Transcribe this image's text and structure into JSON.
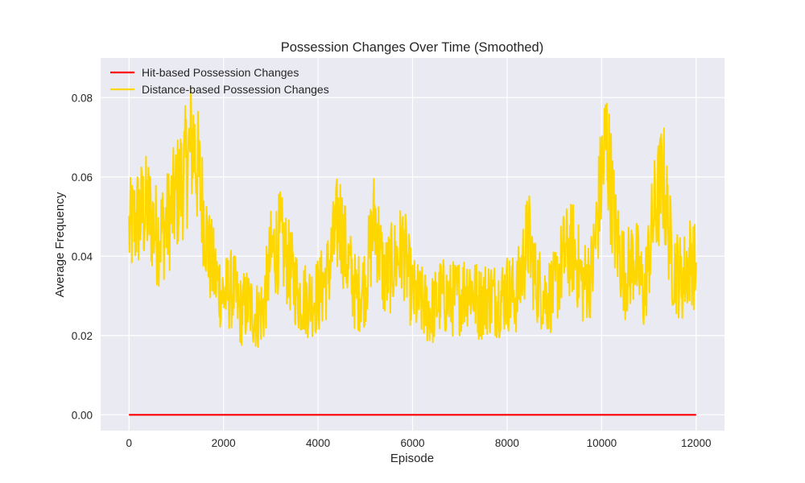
{
  "chart_data": {
    "type": "line",
    "title": "Possession Changes Over Time (Smoothed)",
    "xlabel": "Episode",
    "ylabel": "Average Frequency",
    "xlim": [
      -600,
      12600
    ],
    "ylim": [
      -0.004,
      0.09
    ],
    "xticks": [
      0,
      2000,
      4000,
      6000,
      8000,
      10000,
      12000
    ],
    "xtick_labels": [
      "0",
      "2000",
      "4000",
      "6000",
      "8000",
      "10000",
      "12000"
    ],
    "yticks": [
      0.0,
      0.02,
      0.04,
      0.06,
      0.08
    ],
    "ytick_labels": [
      "0.00",
      "0.02",
      "0.04",
      "0.06",
      "0.08"
    ],
    "grid": true,
    "legend_position": "top-left",
    "background_color": "#eaeaf2",
    "series": [
      {
        "name": "Hit-based Possession Changes",
        "color": "#ff0000",
        "x": [
          0,
          12000
        ],
        "y": [
          0.0,
          0.0
        ]
      },
      {
        "name": "Distance-based Possession Changes",
        "color": "#ffd700",
        "x": [
          0,
          200,
          400,
          600,
          800,
          1000,
          1200,
          1350,
          1500,
          1700,
          1850,
          2000,
          2200,
          2350,
          2500,
          2700,
          2850,
          3000,
          3200,
          3400,
          3600,
          3800,
          4000,
          4200,
          4450,
          4600,
          4800,
          5000,
          5200,
          5400,
          5600,
          5800,
          6000,
          6200,
          6400,
          6600,
          6800,
          7000,
          7200,
          7400,
          7600,
          7800,
          8000,
          8200,
          8450,
          8600,
          8800,
          9000,
          9200,
          9400,
          9600,
          9800,
          10000,
          10100,
          10300,
          10500,
          10700,
          10900,
          11100,
          11300,
          11500,
          11700,
          11900,
          12000
        ],
        "y": [
          0.046,
          0.05,
          0.052,
          0.045,
          0.048,
          0.055,
          0.062,
          0.07,
          0.058,
          0.04,
          0.034,
          0.03,
          0.032,
          0.026,
          0.028,
          0.025,
          0.027,
          0.04,
          0.044,
          0.037,
          0.03,
          0.029,
          0.03,
          0.035,
          0.05,
          0.04,
          0.03,
          0.033,
          0.05,
          0.034,
          0.038,
          0.042,
          0.03,
          0.028,
          0.026,
          0.03,
          0.029,
          0.03,
          0.033,
          0.028,
          0.03,
          0.029,
          0.031,
          0.03,
          0.045,
          0.034,
          0.03,
          0.031,
          0.04,
          0.042,
          0.033,
          0.036,
          0.06,
          0.07,
          0.045,
          0.035,
          0.04,
          0.03,
          0.05,
          0.06,
          0.038,
          0.034,
          0.04,
          0.036
        ]
      }
    ]
  }
}
